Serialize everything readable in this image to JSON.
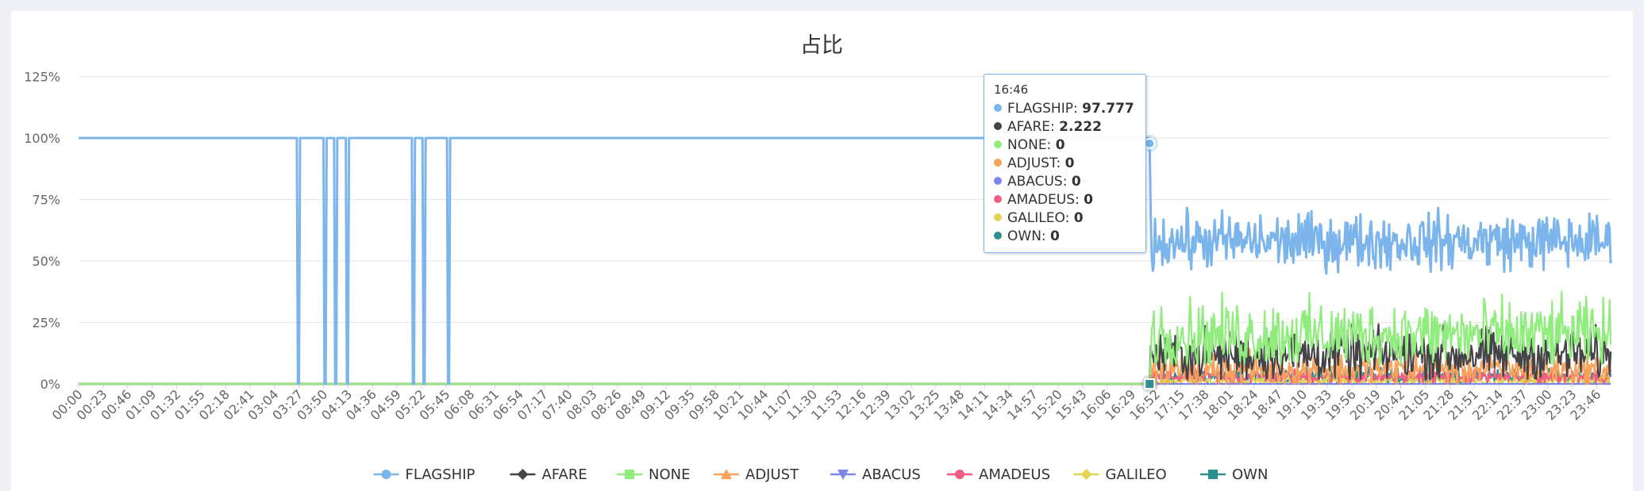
{
  "chart_data": {
    "type": "line",
    "title": "占比",
    "y_ticks": [
      "0%",
      "25%",
      "50%",
      "75%",
      "100%",
      "125%"
    ],
    "ylim": [
      0,
      125
    ],
    "grid": true,
    "legend_position": "bottom",
    "x_labels": [
      "00:00",
      "00:23",
      "00:46",
      "01:09",
      "01:32",
      "01:55",
      "02:18",
      "02:41",
      "03:04",
      "03:27",
      "03:50",
      "04:13",
      "04:36",
      "04:59",
      "05:22",
      "05:45",
      "06:08",
      "06:31",
      "06:54",
      "07:17",
      "07:40",
      "08:03",
      "08:26",
      "08:49",
      "09:12",
      "09:35",
      "09:58",
      "10:21",
      "10:44",
      "11:07",
      "11:30",
      "11:53",
      "12:16",
      "12:39",
      "13:02",
      "13:25",
      "13:48",
      "14:11",
      "14:34",
      "14:57",
      "15:20",
      "15:43",
      "16:06",
      "16:29",
      "16:52",
      "17:15",
      "17:38",
      "18:01",
      "18:24",
      "18:47",
      "19:10",
      "19:33",
      "19:56",
      "20:19",
      "20:42",
      "21:05",
      "21:28",
      "21:51",
      "22:14",
      "22:37",
      "23:00",
      "23:23",
      "23:46"
    ],
    "x_range_minutes": [
      0,
      1439
    ],
    "dips": [
      {
        "from": "03:26",
        "to": "03:27"
      },
      {
        "from": "03:51",
        "to": "03:52"
      },
      {
        "from": "04:01",
        "to": "04:02"
      },
      {
        "from": "04:12",
        "to": "04:13"
      },
      {
        "from": "05:14",
        "to": "05:15"
      },
      {
        "from": "05:24",
        "to": "05:25"
      },
      {
        "from": "05:47",
        "to": "05:48"
      }
    ],
    "switch_time": "16:46",
    "series": [
      {
        "name": "FLAGSHIP",
        "color": "#7cb5ec",
        "marker": "circle",
        "before": 100,
        "after_range": [
          42,
          72
        ],
        "after_mean": 58
      },
      {
        "name": "AFARE",
        "color": "#434348",
        "marker": "diamond",
        "before": 0,
        "after_range": [
          2,
          30
        ],
        "after_mean": 12
      },
      {
        "name": "NONE",
        "color": "#90ed7d",
        "marker": "square",
        "before": 0,
        "after_range": [
          8,
          45
        ],
        "after_mean": 20
      },
      {
        "name": "ADJUST",
        "color": "#f7a35c",
        "marker": "triangle",
        "before": 0,
        "after_range": [
          0,
          18
        ],
        "after_mean": 6
      },
      {
        "name": "ABACUS",
        "color": "#8085e9",
        "marker": "triangle-down",
        "before": 0,
        "after_range": [
          0,
          0
        ],
        "after_mean": 0
      },
      {
        "name": "AMADEUS",
        "color": "#f15c80",
        "marker": "circle",
        "before": 0,
        "after_range": [
          0,
          8
        ],
        "after_mean": 3
      },
      {
        "name": "GALILEO",
        "color": "#e4d354",
        "marker": "diamond",
        "before": 0,
        "after_range": [
          0,
          6
        ],
        "after_mean": 1
      },
      {
        "name": "OWN",
        "color": "#2b908f",
        "marker": "square",
        "before": 0,
        "after_range": [
          0,
          10
        ],
        "after_mean": 3
      }
    ]
  },
  "tooltip": {
    "time": "16:46",
    "rows": [
      {
        "name": "FLAGSHIP",
        "value": "97.777",
        "color": "#7cb5ec"
      },
      {
        "name": "AFARE",
        "value": "2.222",
        "color": "#434348"
      },
      {
        "name": "NONE",
        "value": "0",
        "color": "#90ed7d"
      },
      {
        "name": "ADJUST",
        "value": "0",
        "color": "#f7a35c"
      },
      {
        "name": "ABACUS",
        "value": "0",
        "color": "#8085e9"
      },
      {
        "name": "AMADEUS",
        "value": "0",
        "color": "#f15c80"
      },
      {
        "name": "GALILEO",
        "value": "0",
        "color": "#e4d354"
      },
      {
        "name": "OWN",
        "value": "0",
        "color": "#2b908f"
      }
    ]
  }
}
